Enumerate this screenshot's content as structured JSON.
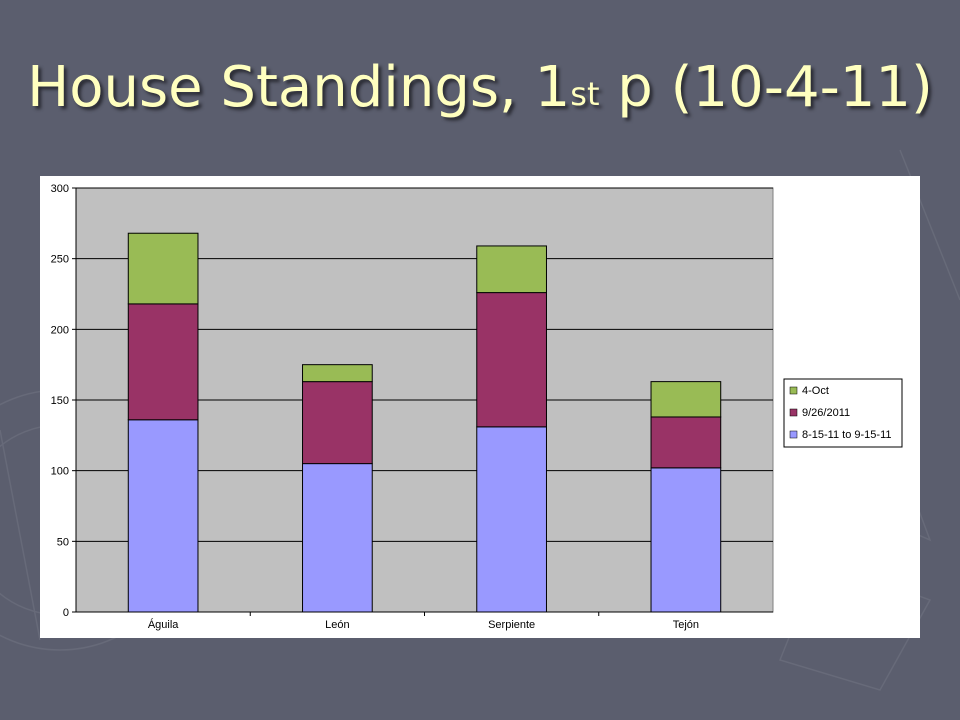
{
  "slide": {
    "title_main": "House Standings, 1",
    "title_sup": "st",
    "title_rest": " p (10-4-11)"
  },
  "chart_data": {
    "type": "bar",
    "stacked": true,
    "title": "",
    "xlabel": "",
    "ylabel": "",
    "categories": [
      "Águila",
      "León",
      "Serpiente",
      "Tejón"
    ],
    "ylim": [
      0,
      300
    ],
    "yticks": [
      0,
      50,
      100,
      150,
      200,
      250,
      300
    ],
    "grid": true,
    "legend_position": "right",
    "series": [
      {
        "name": "8-15-11 to 9-15-11",
        "color": "#9999ff",
        "values": [
          136,
          105,
          131,
          102
        ]
      },
      {
        "name": "9/26/2011",
        "color": "#993366",
        "values": [
          82,
          58,
          95,
          36
        ]
      },
      {
        "name": "4-Oct",
        "color": "#99bb55",
        "values": [
          50,
          12,
          33,
          25
        ]
      }
    ],
    "legend_order": [
      2,
      1,
      0
    ],
    "colors": {
      "plot_background": "#c0c0c0",
      "chart_background": "#ffffff",
      "gridline": "#000000"
    }
  }
}
